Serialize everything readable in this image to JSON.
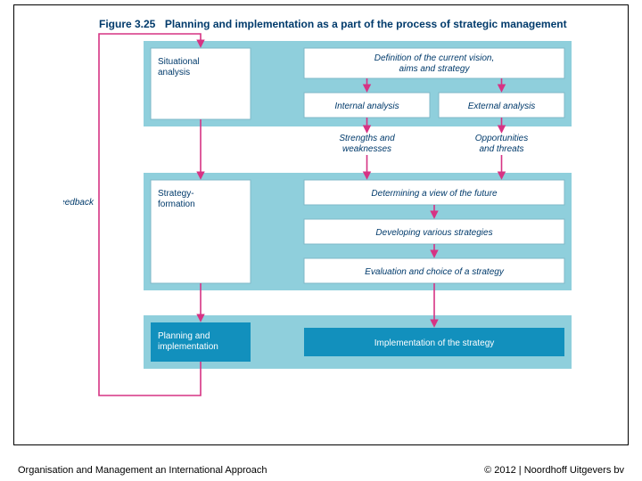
{
  "figure": {
    "number": "Figure 3.25",
    "title": "Planning and implementation as a part of the process of strategic management"
  },
  "colors": {
    "phase_fill": "#8fcfdc",
    "sub_stroke": "#7fb9c8",
    "dark_fill": "#1290bd",
    "arrow": "#d63384",
    "text_blue": "#003a6b"
  },
  "feedback_label": "Feedback",
  "phases": {
    "situational": {
      "label": "Situational\nanalysis",
      "definition": "Definition of the current vision,\naims and strategy",
      "internal": "Internal analysis",
      "external": "External analysis",
      "sw": "Strengths and\nweaknesses",
      "ot": "Opportunities\nand threats"
    },
    "strategy": {
      "label": "Strategy-\nformation",
      "row1": "Determining a view of the future",
      "row2": "Developing various strategies",
      "row3": "Evaluation and choice of a strategy"
    },
    "planning": {
      "label": "Planning and\nimplementation",
      "row1": "Implementation of the strategy"
    }
  },
  "footer": {
    "left": "Organisation and Management an International Approach",
    "right": "© 2012  |  Noordhoff Uitgevers bv"
  }
}
